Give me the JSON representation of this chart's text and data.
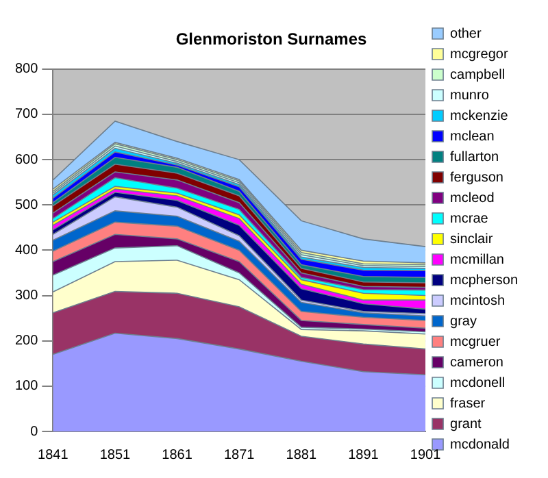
{
  "chart_data": {
    "type": "area",
    "title": "Glenmoriston Surnames",
    "categories": [
      "1841",
      "1851",
      "1861",
      "1871",
      "1881",
      "1891",
      "1901"
    ],
    "stacked": true,
    "ylim": [
      0,
      800
    ],
    "yticks": [
      0,
      100,
      200,
      300,
      400,
      500,
      600,
      700,
      800
    ],
    "grid": "y",
    "legend": "right",
    "series": [
      {
        "name": "mcdonald",
        "color": "#9999ff",
        "values": [
          170,
          217,
          205,
          182,
          155,
          132,
          125
        ]
      },
      {
        "name": "grant",
        "color": "#993366",
        "values": [
          92,
          92,
          100,
          93,
          55,
          61,
          57
        ]
      },
      {
        "name": "fraser",
        "color": "#ffffcc",
        "values": [
          46,
          66,
          73,
          60,
          15,
          29,
          33
        ]
      },
      {
        "name": "mcdonell",
        "color": "#ccffff",
        "values": [
          37,
          30,
          32,
          15,
          5,
          4,
          5
        ]
      },
      {
        "name": "cameron",
        "color": "#660066",
        "values": [
          30,
          30,
          15,
          25,
          15,
          10,
          8
        ]
      },
      {
        "name": "mcgruer",
        "color": "#ff8080",
        "values": [
          23,
          27,
          28,
          25,
          20,
          16,
          17
        ]
      },
      {
        "name": "gray",
        "color": "#0066cc",
        "values": [
          24,
          25,
          22,
          20,
          20,
          10,
          10
        ]
      },
      {
        "name": "mcintosh",
        "color": "#ccccff",
        "values": [
          13,
          31,
          20,
          12,
          5,
          3,
          5
        ]
      },
      {
        "name": "mcpherson",
        "color": "#000080",
        "values": [
          10,
          10,
          15,
          23,
          25,
          17,
          10
        ]
      },
      {
        "name": "mcmillan",
        "color": "#ff00ff",
        "values": [
          10,
          7,
          10,
          15,
          10,
          8,
          20
        ]
      },
      {
        "name": "sinclair",
        "color": "#ffff00",
        "values": [
          7,
          6,
          6,
          8,
          10,
          15,
          10
        ]
      },
      {
        "name": "mcrae",
        "color": "#00ffff",
        "values": [
          8,
          19,
          11,
          12,
          5,
          8,
          12
        ]
      },
      {
        "name": "mcleod",
        "color": "#800080",
        "values": [
          12,
          13,
          18,
          15,
          10,
          7,
          6
        ]
      },
      {
        "name": "ferguson",
        "color": "#800000",
        "values": [
          16,
          17,
          15,
          15,
          10,
          10,
          10
        ]
      },
      {
        "name": "fullarton",
        "color": "#008080",
        "values": [
          7,
          15,
          13,
          10,
          8,
          12,
          12
        ]
      },
      {
        "name": "mclean",
        "color": "#0000ff",
        "values": [
          10,
          12,
          5,
          10,
          12,
          14,
          15
        ]
      },
      {
        "name": "mckenzie",
        "color": "#00ccff",
        "values": [
          7,
          8,
          4,
          5,
          5,
          6,
          5
        ]
      },
      {
        "name": "munro",
        "color": "#ccffff",
        "values": [
          4,
          5,
          4,
          4,
          5,
          4,
          4
        ]
      },
      {
        "name": "campbell",
        "color": "#ccffcc",
        "values": [
          4,
          5,
          4,
          4,
          5,
          4,
          4
        ]
      },
      {
        "name": "mcgregor",
        "color": "#ffff99",
        "values": [
          5,
          3,
          3,
          3,
          5,
          6,
          4
        ]
      },
      {
        "name": "other",
        "color": "#99ccff",
        "values": [
          20,
          47,
          37,
          44,
          65,
          49,
          36
        ]
      }
    ]
  }
}
